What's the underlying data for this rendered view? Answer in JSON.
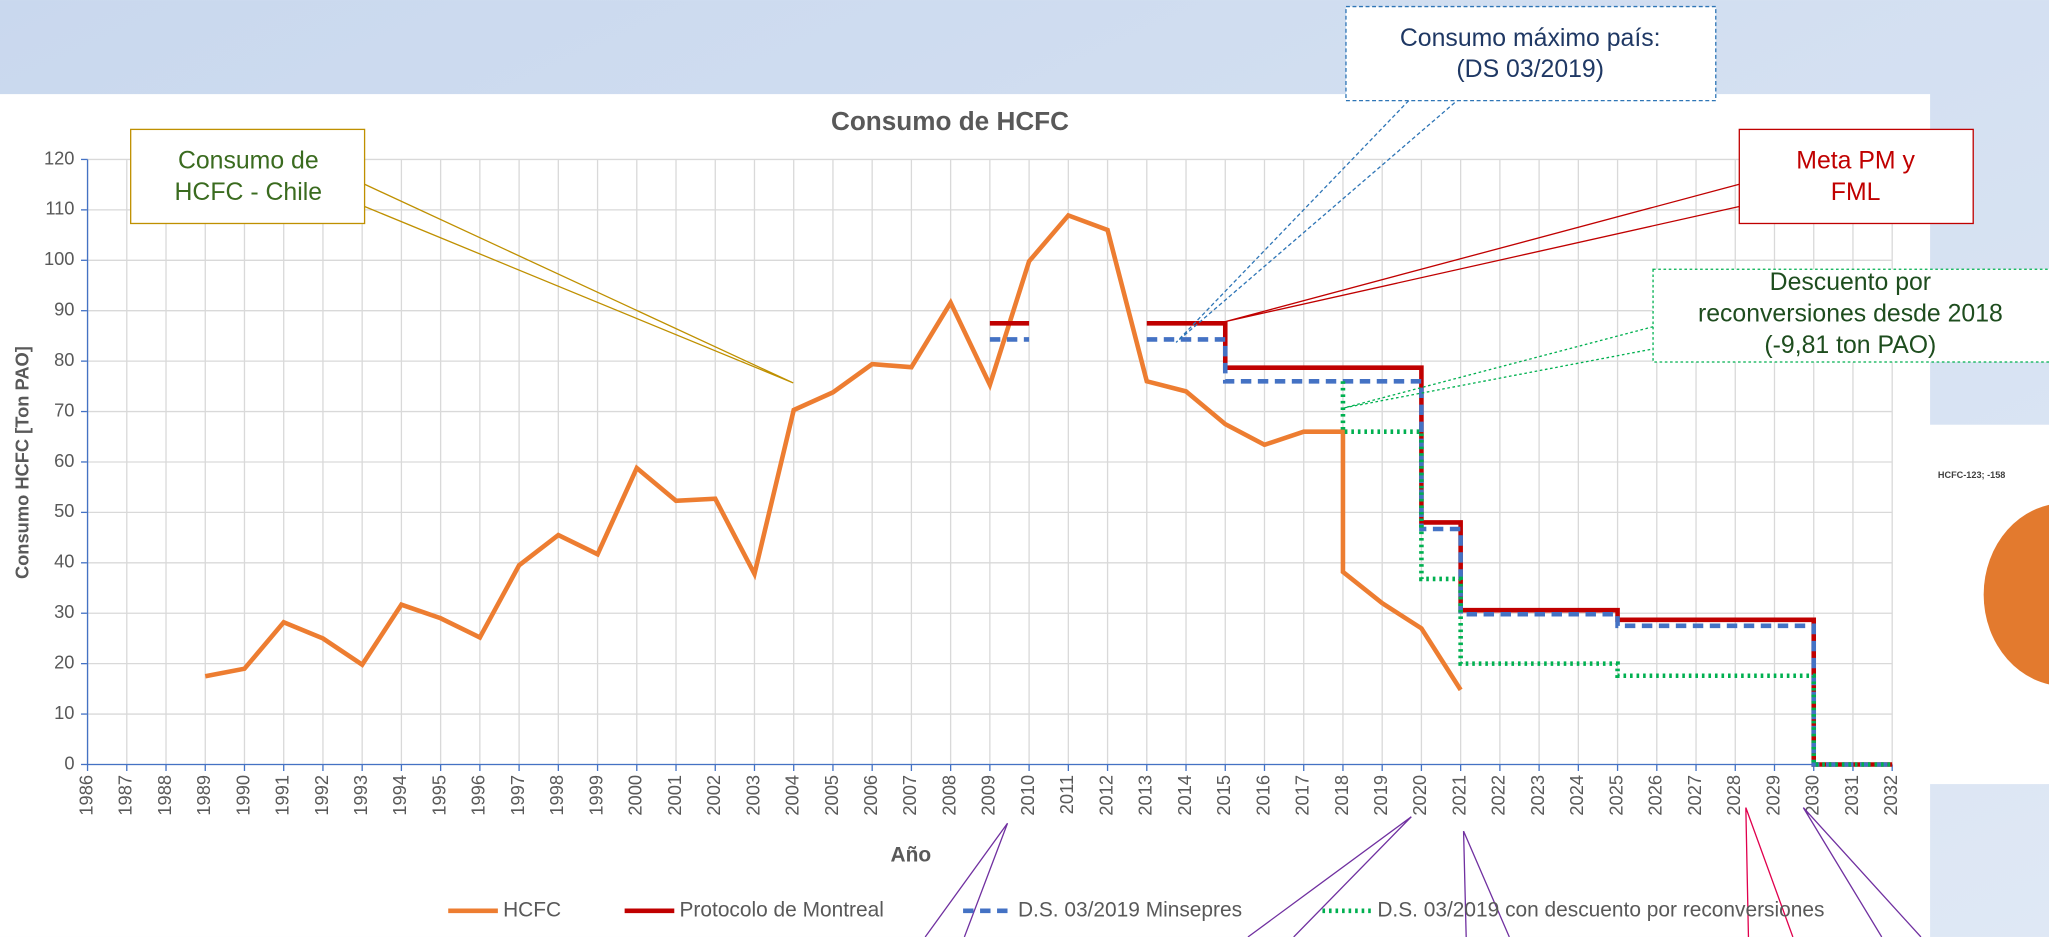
{
  "chart_data": {
    "type": "line",
    "title": "Consumo de HCFC",
    "x_label": "Año",
    "y_label": "Consumo HCFC [Ton PAO]",
    "xlim": [
      1986,
      2032
    ],
    "xticks": [
      1986,
      1987,
      1988,
      1989,
      1990,
      1991,
      1992,
      1993,
      1994,
      1995,
      1996,
      1997,
      1998,
      1999,
      2000,
      2001,
      2002,
      2003,
      2004,
      2005,
      2006,
      2007,
      2008,
      2009,
      2010,
      2011,
      2012,
      2013,
      2014,
      2015,
      2016,
      2017,
      2018,
      2019,
      2020,
      2021,
      2022,
      2023,
      2024,
      2025,
      2026,
      2027,
      2028,
      2029,
      2030,
      2031,
      2032
    ],
    "ylim": [
      0,
      120
    ],
    "yticks": [
      0,
      10,
      20,
      30,
      40,
      50,
      60,
      70,
      80,
      90,
      100,
      110,
      120
    ],
    "grid": true,
    "legend": "bottom",
    "series": [
      {
        "name": "HCFC",
        "color": "#ed7d31",
        "dash": "solid",
        "x": [
          1989,
          1990,
          1991,
          1992,
          1993,
          1994,
          1995,
          1996,
          1997,
          1998,
          1999,
          2000,
          2001,
          2002,
          2003,
          2004,
          2005,
          2006,
          2007,
          2008,
          2009,
          2010,
          2011,
          2012,
          2013,
          2014,
          2015,
          2016,
          2017,
          2018,
          2018,
          2019,
          2020,
          2021
        ],
        "values": [
          17.5,
          19,
          28.2,
          25,
          19.8,
          31.7,
          29,
          25.2,
          39.5,
          45.5,
          41.7,
          58.8,
          52.3,
          52.7,
          37.8,
          70.3,
          73.8,
          79.4,
          78.8,
          91.6,
          75.3,
          99.8,
          108.9,
          106,
          76,
          74,
          67.5,
          63.4,
          66,
          66,
          38.2,
          32,
          27,
          14.8
        ]
      },
      {
        "name": "Protocolo de Montreal",
        "color": "#c00000",
        "dash": "solid",
        "x": [
          2009,
          2010,
          2011,
          2013,
          2015,
          2015,
          2020,
          2020,
          2021,
          2021,
          2025,
          2025,
          2030,
          2030,
          2032
        ],
        "values": [
          87.5,
          87.5,
          null,
          87.5,
          87.5,
          78.7,
          78.7,
          48,
          48,
          30.6,
          30.6,
          28.7,
          28.7,
          0,
          0
        ]
      },
      {
        "name": "D.S. 03/2019 Minsepres",
        "color": "#4472c4",
        "dash": "dashed",
        "x": [
          2009,
          2010,
          2011,
          2013,
          2015,
          2015,
          2020,
          2020,
          2021,
          2021,
          2025,
          2025,
          2030,
          2030,
          2032
        ],
        "values": [
          84.3,
          84.3,
          null,
          84.3,
          84.3,
          76,
          76,
          46.7,
          46.7,
          29.8,
          29.8,
          27.5,
          27.5,
          0,
          0
        ]
      },
      {
        "name": "D.S. 03/2019 con descuento por reconversiones",
        "color": "#00b050",
        "dash": "dotted",
        "x": [
          2018,
          2018,
          2020,
          2020,
          2021,
          2021,
          2025,
          2025,
          2030,
          2030,
          2032
        ],
        "values": [
          76,
          66,
          66,
          36.8,
          36.8,
          20,
          20,
          17.6,
          17.6,
          0,
          0
        ]
      }
    ]
  },
  "annotations": [
    {
      "lines": [
        "Consumo de",
        "HCFC - Chile"
      ]
    },
    {
      "lines": [
        "Consumo máximo país:",
        "(DS 03/2019)"
      ]
    },
    {
      "lines": [
        "Meta PM y",
        "FML"
      ]
    },
    {
      "lines": [
        "Descuento por",
        "reconversiones desde 2018",
        "(-9,81 ton PAO)"
      ]
    }
  ],
  "side_chart": {
    "label": "HCFC-123; -158"
  }
}
